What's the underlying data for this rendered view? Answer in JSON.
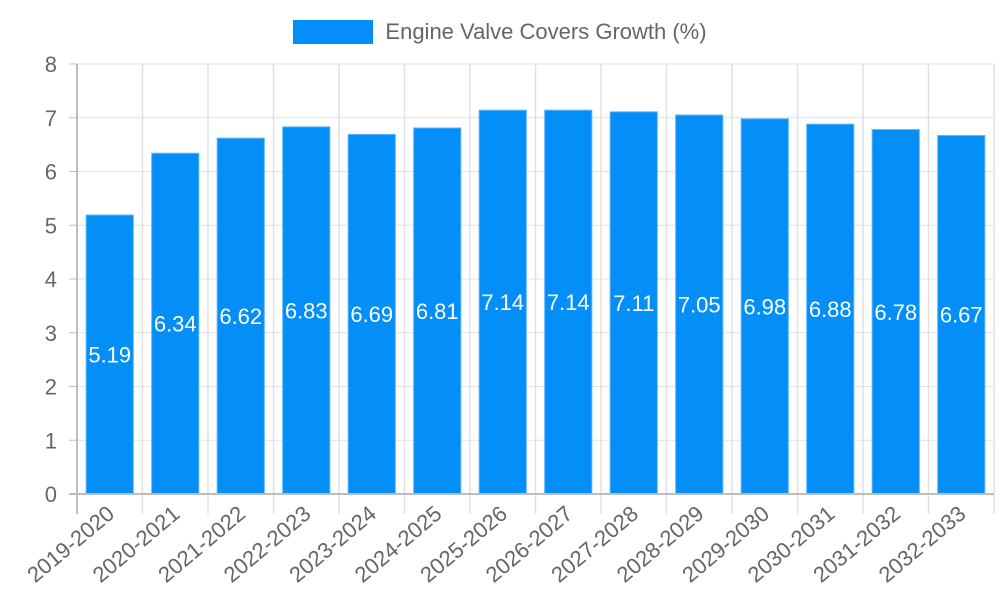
{
  "legend": {
    "label": "Engine Valve Covers Growth (%)",
    "color": "#038ef8"
  },
  "chart_data": {
    "type": "bar",
    "title": "",
    "xlabel": "",
    "ylabel": "",
    "ylim": [
      0,
      8
    ],
    "yticks": [
      0,
      1,
      2,
      3,
      4,
      5,
      6,
      7,
      8
    ],
    "grid": true,
    "legend_position": "top",
    "categories": [
      "2019-2020",
      "2020-2021",
      "2021-2022",
      "2022-2023",
      "2023-2024",
      "2024-2025",
      "2025-2026",
      "2026-2027",
      "2027-2028",
      "2028-2029",
      "2029-2030",
      "2030-2031",
      "2031-2032",
      "2032-2033"
    ],
    "series": [
      {
        "name": "Engine Valve Covers Growth (%)",
        "color": "#038ef8",
        "values": [
          5.19,
          6.34,
          6.62,
          6.83,
          6.69,
          6.81,
          7.14,
          7.14,
          7.11,
          7.05,
          6.98,
          6.88,
          6.78,
          6.67
        ]
      }
    ],
    "data_labels": true
  }
}
